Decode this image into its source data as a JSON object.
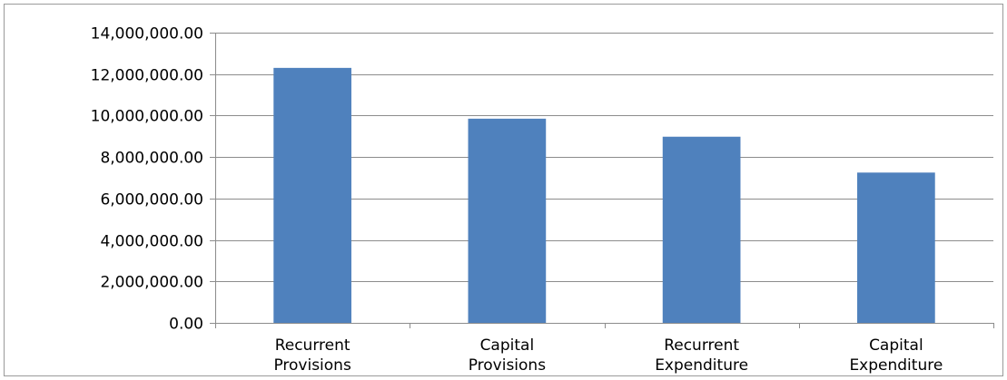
{
  "chart_data": {
    "type": "bar",
    "categories": [
      [
        "Recurrent",
        "Provisions"
      ],
      [
        "Capital",
        "Provisions"
      ],
      [
        "Recurrent",
        "Expenditure"
      ],
      [
        "Capital",
        "Expenditure"
      ]
    ],
    "values": [
      12300000,
      9850000,
      8980000,
      7250000
    ],
    "ylim": [
      0,
      14000000
    ],
    "ytick_values": [
      0,
      2000000,
      4000000,
      6000000,
      8000000,
      10000000,
      12000000,
      14000000
    ],
    "ytick_labels": [
      "0.00",
      "2,000,000.00",
      "4,000,000.00",
      "6,000,000.00",
      "8,000,000.00",
      "10,000,000.00",
      "12,000,000.00",
      "14,000,000.00"
    ],
    "grid": true,
    "legend": "none",
    "colors": {
      "bar": "#4f81bd",
      "grid": "#8c8c8c",
      "axis": "#8c8c8c",
      "text": "#000000"
    }
  }
}
